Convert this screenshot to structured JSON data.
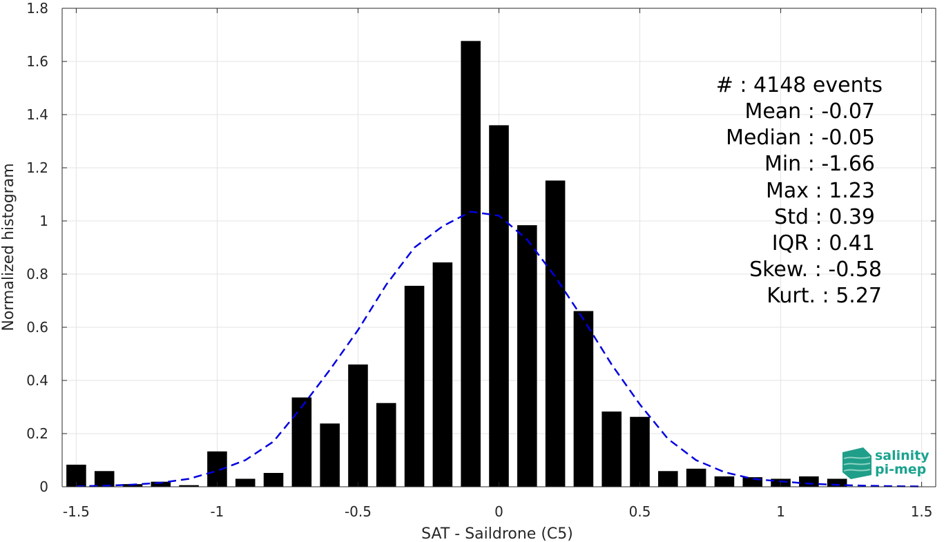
{
  "chart_data": {
    "type": "bar",
    "xlabel": "SAT - Saildrone (C5)",
    "ylabel": "Normalized histogram",
    "xlim": [
      -1.55,
      1.55
    ],
    "ylim": [
      0,
      1.8
    ],
    "xticks": [
      -1.5,
      -1,
      -0.5,
      0,
      0.5,
      1,
      1.5
    ],
    "xtick_labels": [
      "-1.5",
      "-1",
      "-0.5",
      "0",
      "0.5",
      "1",
      "1.5"
    ],
    "yticks": [
      0,
      0.2,
      0.4,
      0.6,
      0.8,
      1,
      1.2,
      1.4,
      1.6,
      1.8
    ],
    "ytick_labels": [
      "0",
      "0.2",
      "0.4",
      "0.6",
      "0.8",
      "1",
      "1.2",
      "1.4",
      "1.6",
      "1.8"
    ],
    "grid": true,
    "bar_color": "#000000",
    "bar_width": 0.07,
    "bars": {
      "x": [
        -1.5,
        -1.4,
        -1.3,
        -1.2,
        -1.1,
        -1.0,
        -0.9,
        -0.8,
        -0.7,
        -0.6,
        -0.5,
        -0.4,
        -0.3,
        -0.2,
        -0.1,
        0.0,
        0.1,
        0.2,
        0.3,
        0.4,
        0.5,
        0.6,
        0.7,
        0.8,
        0.9,
        1.0,
        1.1,
        1.2
      ],
      "values": [
        0.083,
        0.059,
        0.01,
        0.019,
        0.006,
        0.133,
        0.03,
        0.052,
        0.336,
        0.238,
        0.46,
        0.315,
        0.756,
        0.844,
        1.677,
        1.36,
        0.984,
        1.152,
        0.661,
        0.283,
        0.263,
        0.059,
        0.068,
        0.039,
        0.036,
        0.03,
        0.039,
        0.03
      ]
    },
    "fit_curve": {
      "style": "dashed",
      "color": "#0000e0",
      "x": [
        -1.5,
        -1.4,
        -1.3,
        -1.2,
        -1.1,
        -1.0,
        -0.9,
        -0.8,
        -0.7,
        -0.6,
        -0.5,
        -0.4,
        -0.3,
        -0.2,
        -0.1,
        0.0,
        0.1,
        0.2,
        0.3,
        0.4,
        0.5,
        0.6,
        0.7,
        0.8,
        0.9,
        1.0,
        1.1,
        1.2,
        1.3,
        1.4,
        1.5
      ],
      "y": [
        0.002,
        0.004,
        0.008,
        0.015,
        0.03,
        0.06,
        0.1,
        0.17,
        0.3,
        0.44,
        0.59,
        0.76,
        0.9,
        0.98,
        1.035,
        1.02,
        0.93,
        0.79,
        0.63,
        0.46,
        0.31,
        0.18,
        0.1,
        0.055,
        0.03,
        0.02,
        0.012,
        0.007,
        0.004,
        0.002,
        0.001
      ]
    },
    "stats": [
      {
        "label": "#  : 4148 events"
      },
      {
        "label": "Mean : -0.07"
      },
      {
        "label": "Median : -0.05"
      },
      {
        "label": "Min : -1.66"
      },
      {
        "label": "Max : 1.23"
      },
      {
        "label": "Std : 0.39"
      },
      {
        "label": "IQR : 0.41"
      },
      {
        "label": "Skew. : -0.58"
      },
      {
        "label": "Kurt. : 5.27"
      }
    ],
    "logo": {
      "line1": "salinity",
      "line2": "pi-mep",
      "color": "#1aa38f"
    }
  }
}
